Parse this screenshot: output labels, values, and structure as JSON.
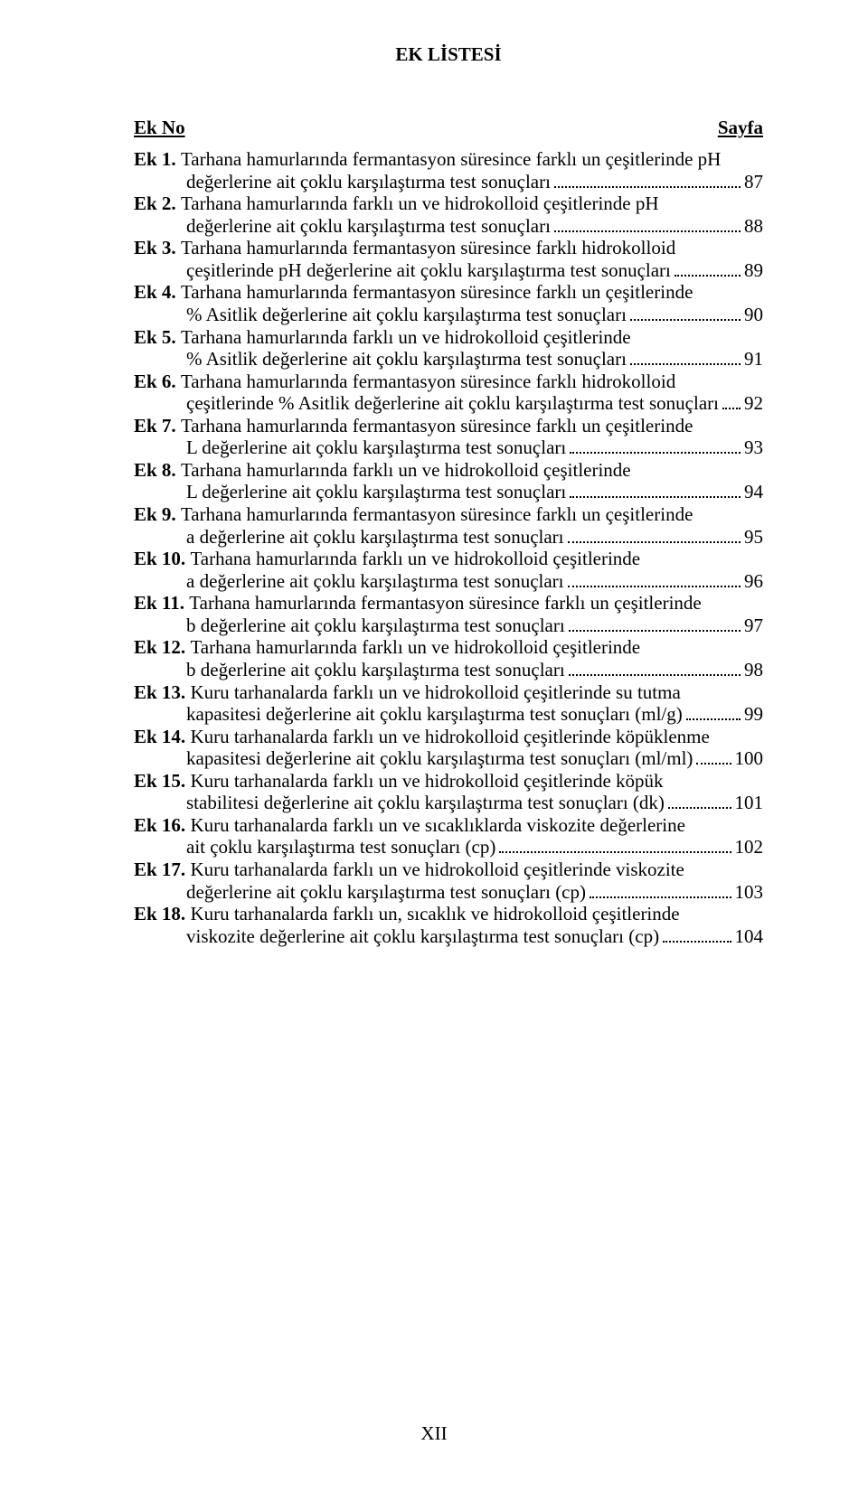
{
  "title": "EK LİSTESİ",
  "header_left": "Ek No",
  "header_right": "Sayfa",
  "footer": "XII",
  "entries": [
    {
      "label": "Ek 1.",
      "lines": [
        "Tarhana hamurlarında fermantasyon süresince farklı un çeşitlerinde pH",
        "değerlerine ait çoklu karşılaştırma test sonuçları"
      ],
      "page": "87"
    },
    {
      "label": "Ek 2.",
      "lines": [
        "Tarhana hamurlarında farklı un ve hidrokolloid çeşitlerinde pH",
        "değerlerine ait çoklu karşılaştırma test sonuçları"
      ],
      "page": "88"
    },
    {
      "label": "Ek 3.",
      "lines": [
        "Tarhana hamurlarında fermantasyon süresince farklı hidrokolloid",
        "çeşitlerinde pH değerlerine ait çoklu karşılaştırma test sonuçları"
      ],
      "page": "89"
    },
    {
      "label": "Ek 4.",
      "lines": [
        "Tarhana hamurlarında fermantasyon süresince farklı un çeşitlerinde",
        "% Asitlik değerlerine ait çoklu karşılaştırma test sonuçları"
      ],
      "page": "90"
    },
    {
      "label": "Ek 5.",
      "lines": [
        "Tarhana hamurlarında farklı un ve hidrokolloid çeşitlerinde",
        "% Asitlik değerlerine ait çoklu karşılaştırma test sonuçları"
      ],
      "page": "91"
    },
    {
      "label": "Ek 6.",
      "lines": [
        "Tarhana hamurlarında fermantasyon süresince farklı hidrokolloid",
        "çeşitlerinde % Asitlik değerlerine ait çoklu karşılaştırma test sonuçları"
      ],
      "page": "92"
    },
    {
      "label": "Ek 7.",
      "lines": [
        "Tarhana hamurlarında fermantasyon süresince farklı un çeşitlerinde",
        "L değerlerine ait çoklu karşılaştırma test sonuçları"
      ],
      "page": "93"
    },
    {
      "label": "Ek 8.",
      "lines": [
        "Tarhana hamurlarında farklı un ve hidrokolloid çeşitlerinde",
        "L değerlerine ait çoklu karşılaştırma test sonuçları"
      ],
      "page": "94"
    },
    {
      "label": "Ek 9.",
      "lines": [
        "Tarhana hamurlarında fermantasyon süresince farklı un çeşitlerinde",
        "a değerlerine ait çoklu karşılaştırma test sonuçları"
      ],
      "page": "95"
    },
    {
      "label": "Ek 10.",
      "lines": [
        "Tarhana hamurlarında farklı un ve hidrokolloid çeşitlerinde",
        "a değerlerine ait çoklu karşılaştırma test sonuçları"
      ],
      "page": "96"
    },
    {
      "label": "Ek 11.",
      "lines": [
        "Tarhana hamurlarında fermantasyon süresince farklı un çeşitlerinde",
        "b değerlerine ait çoklu karşılaştırma test sonuçları"
      ],
      "page": "97"
    },
    {
      "label": "Ek 12.",
      "lines": [
        "Tarhana hamurlarında farklı un ve hidrokolloid çeşitlerinde",
        "b değerlerine ait çoklu karşılaştırma test sonuçları"
      ],
      "page": "98"
    },
    {
      "label": "Ek 13.",
      "lines": [
        "Kuru tarhanalarda farklı un ve hidrokolloid çeşitlerinde su tutma",
        "kapasitesi değerlerine ait çoklu karşılaştırma test sonuçları (ml/g)"
      ],
      "page": "99"
    },
    {
      "label": "Ek 14.",
      "lines": [
        "Kuru tarhanalarda farklı un ve hidrokolloid çeşitlerinde köpüklenme",
        "kapasitesi değerlerine ait çoklu karşılaştırma test sonuçları (ml/ml)"
      ],
      "page": "100"
    },
    {
      "label": "Ek 15.",
      "lines": [
        "Kuru tarhanalarda farklı un ve hidrokolloid çeşitlerinde köpük",
        "stabilitesi değerlerine ait çoklu karşılaştırma test sonuçları (dk)"
      ],
      "page": "101"
    },
    {
      "label": "Ek 16.",
      "lines": [
        "Kuru tarhanalarda farklı un ve sıcaklıklarda viskozite değerlerine",
        "ait çoklu karşılaştırma test sonuçları (cp)"
      ],
      "page": "102"
    },
    {
      "label": "Ek 17.",
      "lines": [
        "Kuru tarhanalarda farklı un ve hidrokolloid çeşitlerinde viskozite",
        "değerlerine ait çoklu karşılaştırma test sonuçları (cp)"
      ],
      "page": "103"
    },
    {
      "label": "Ek 18.",
      "lines": [
        "Kuru tarhanalarda farklı un, sıcaklık ve hidrokolloid çeşitlerinde",
        "viskozite değerlerine ait çoklu karşılaştırma test sonuçları (cp)"
      ],
      "page": "104"
    }
  ]
}
